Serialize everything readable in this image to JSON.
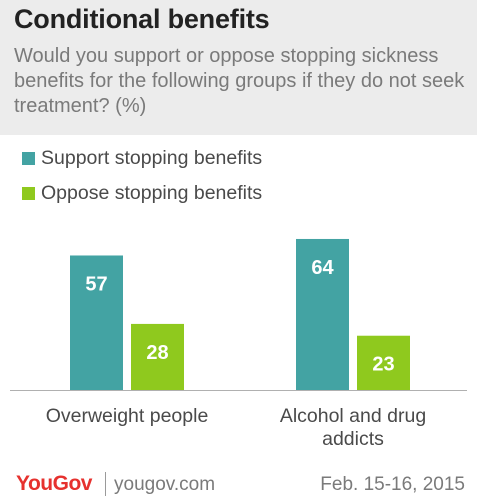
{
  "chart_data": {
    "type": "bar",
    "title": "Conditional benefits",
    "subtitle": "Would you support or oppose stopping sickness benefits for the following groups if they do not seek treatment? (%)",
    "categories": [
      [
        "Overweight people"
      ],
      [
        "Alcohol and drug",
        "addicts"
      ]
    ],
    "series": [
      {
        "name": "Support stopping benefits",
        "color": "#43a3a3",
        "values": [
          57,
          64
        ]
      },
      {
        "name": "Oppose stopping benefits",
        "color": "#8fc91e",
        "values": [
          28,
          23
        ]
      }
    ],
    "ylim": [
      0,
      70
    ],
    "grid": false,
    "legend_position": "top-left",
    "data_labels": true
  },
  "footer": {
    "brand_you": "You",
    "brand_gov": "Gov",
    "url": "yougov.com",
    "date": "Feb. 15-16, 2015"
  }
}
